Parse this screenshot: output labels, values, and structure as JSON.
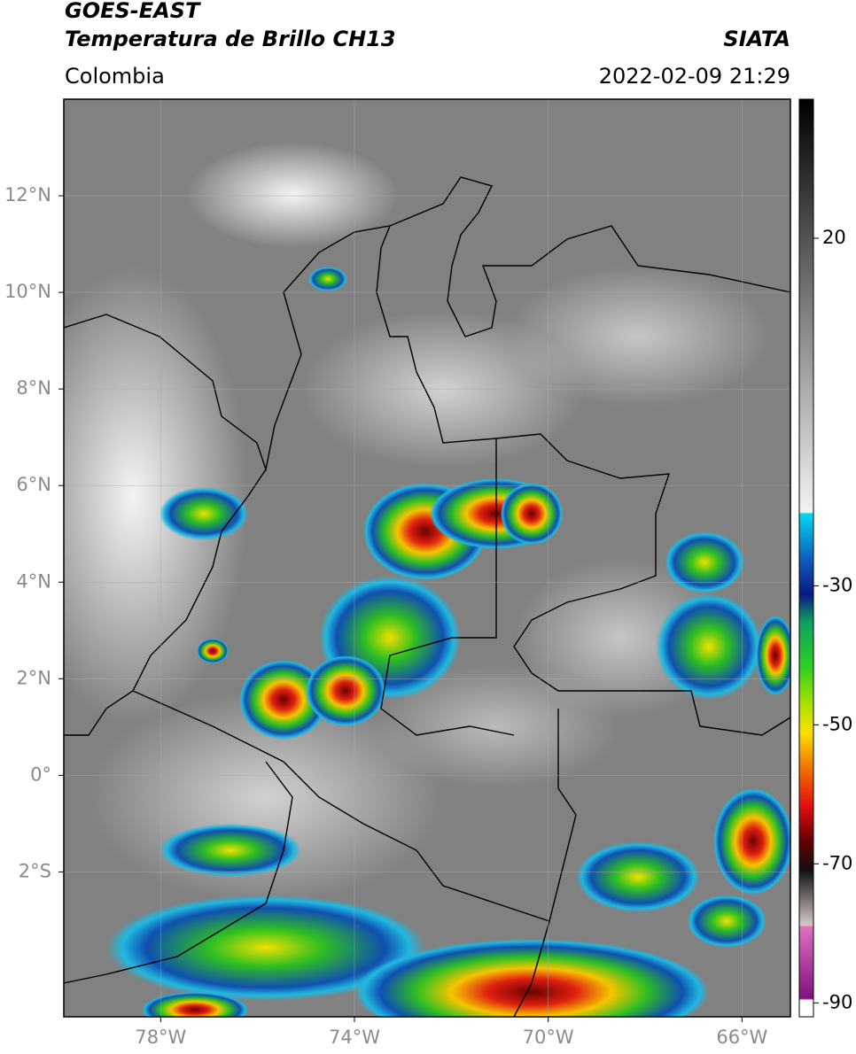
{
  "header": {
    "satellite": "GOES-EAST",
    "product": "Temperatura de Brillo CH13",
    "source": "SIATA",
    "region": "Colombia",
    "datetime": "2022-02-09 21:29"
  },
  "map": {
    "xlim": [
      -80,
      -65
    ],
    "ylim": [
      -5,
      14
    ],
    "grid": true,
    "xticks": [
      {
        "value": -78,
        "label": "78°W"
      },
      {
        "value": -74,
        "label": "74°W"
      },
      {
        "value": -70,
        "label": "70°W"
      },
      {
        "value": -66,
        "label": "66°W"
      }
    ],
    "yticks": [
      {
        "value": 12,
        "label": "12°N"
      },
      {
        "value": 10,
        "label": "10°N"
      },
      {
        "value": 8,
        "label": "8°N"
      },
      {
        "value": 6,
        "label": "6°N"
      },
      {
        "value": 4,
        "label": "4°N"
      },
      {
        "value": 2,
        "label": "2°N"
      },
      {
        "value": 0,
        "label": "0°"
      },
      {
        "value": -2,
        "label": "2°S"
      }
    ]
  },
  "colorbar": {
    "clim": [
      -92,
      40
    ],
    "ticks": [
      20,
      -30,
      -50,
      -70,
      -90
    ]
  }
}
